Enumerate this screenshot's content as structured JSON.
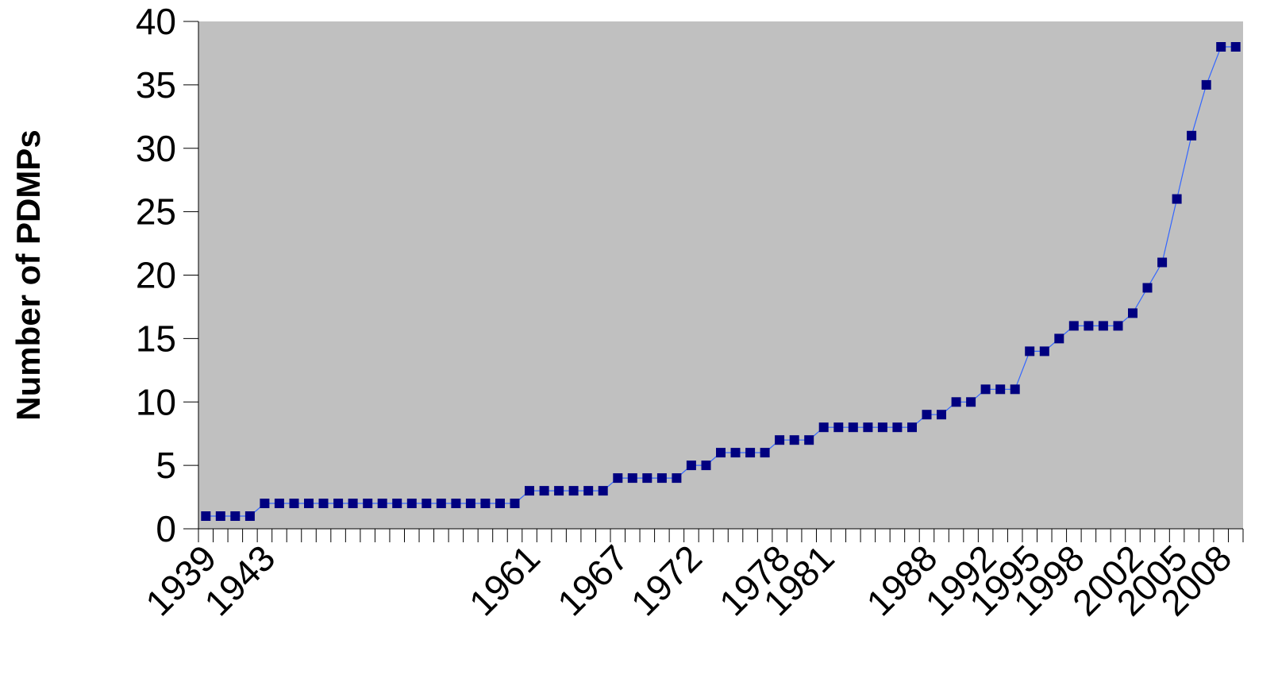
{
  "chart_data": {
    "type": "line",
    "title": "",
    "xlabel": "",
    "ylabel": "Number of PDMPs",
    "ylim": [
      0,
      40
    ],
    "yticks": [
      0,
      5,
      10,
      15,
      20,
      25,
      30,
      35,
      40
    ],
    "xlim": [
      1939,
      2009
    ],
    "x_tick_labels": [
      "1939",
      "1943",
      "1961",
      "1967",
      "1972",
      "1978",
      "1981",
      "1988",
      "1992",
      "1995",
      "1998",
      "2002",
      "2005",
      "2008"
    ],
    "x": [
      1939,
      1940,
      1941,
      1942,
      1943,
      1944,
      1945,
      1946,
      1947,
      1948,
      1949,
      1950,
      1951,
      1952,
      1953,
      1954,
      1955,
      1956,
      1957,
      1958,
      1959,
      1960,
      1961,
      1962,
      1963,
      1964,
      1965,
      1966,
      1967,
      1968,
      1969,
      1970,
      1971,
      1972,
      1973,
      1974,
      1975,
      1976,
      1977,
      1978,
      1979,
      1980,
      1981,
      1982,
      1983,
      1984,
      1985,
      1986,
      1987,
      1988,
      1989,
      1990,
      1991,
      1992,
      1993,
      1994,
      1995,
      1996,
      1997,
      1998,
      1999,
      2000,
      2001,
      2002,
      2003,
      2004,
      2005,
      2006,
      2007,
      2008,
      2009
    ],
    "series": [
      {
        "values": [
          1,
          1,
          1,
          1,
          2,
          2,
          2,
          2,
          2,
          2,
          2,
          2,
          2,
          2,
          2,
          2,
          2,
          2,
          2,
          2,
          2,
          2,
          3,
          3,
          3,
          3,
          3,
          3,
          4,
          4,
          4,
          4,
          4,
          5,
          5,
          6,
          6,
          6,
          6,
          7,
          7,
          7,
          8,
          8,
          8,
          8,
          8,
          8,
          8,
          9,
          9,
          10,
          10,
          11,
          11,
          11,
          14,
          14,
          15,
          16,
          16,
          16,
          16,
          17,
          19,
          21,
          26,
          31,
          35,
          38,
          38
        ],
        "color": "#000080",
        "line_color": "#3366ff"
      }
    ],
    "plot_background": "#c0c0c0",
    "grid": false,
    "legend": "none"
  }
}
